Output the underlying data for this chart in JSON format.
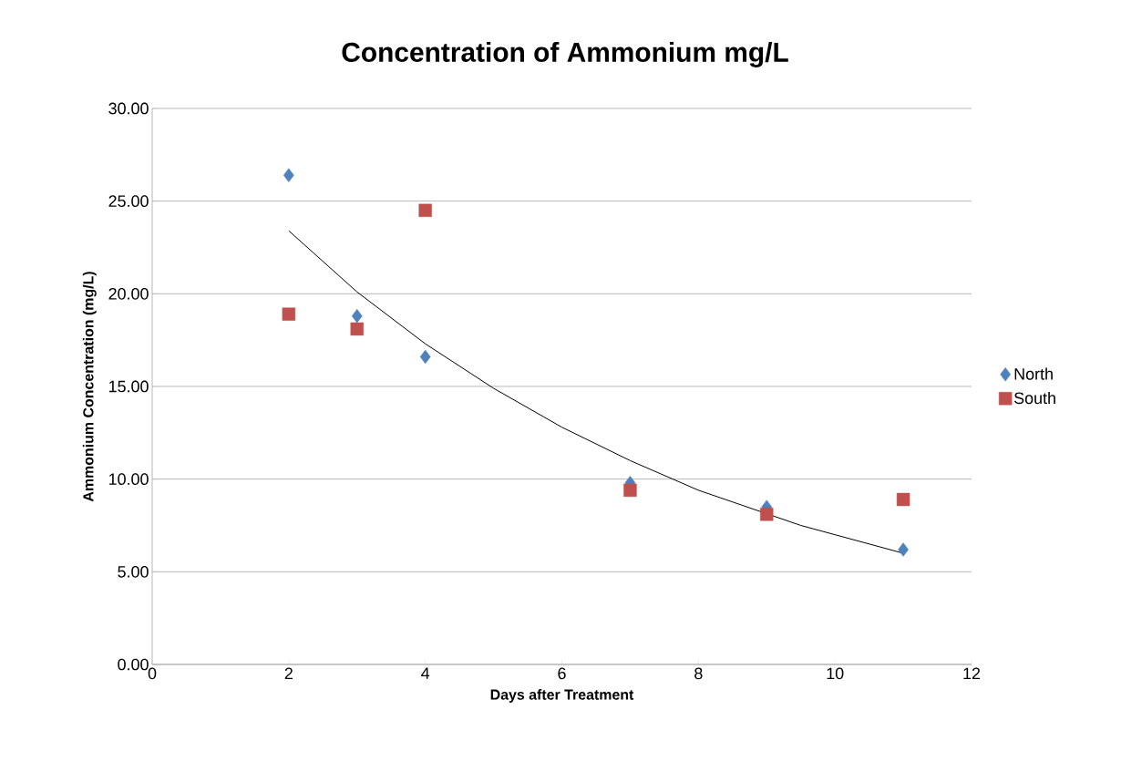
{
  "chart_data": {
    "type": "scatter",
    "title": "Concentration of Ammonium mg/L",
    "xlabel": "Days after Treatment",
    "ylabel": "Ammonium Concentration (mg/L)",
    "xlim": [
      0,
      12
    ],
    "xticks": [
      0,
      2,
      4,
      6,
      8,
      10,
      12
    ],
    "ylim": [
      0,
      30
    ],
    "yticks": [
      {
        "value": 0,
        "label": "0.00"
      },
      {
        "value": 5,
        "label": "5.00"
      },
      {
        "value": 10,
        "label": "10.00"
      },
      {
        "value": 15,
        "label": "15.00"
      },
      {
        "value": 20,
        "label": "20.00"
      },
      {
        "value": 25,
        "label": "25.00"
      },
      {
        "value": 30,
        "label": "30.00"
      }
    ],
    "grid": "y",
    "legend": "right",
    "series": [
      {
        "name": "North",
        "color": "#4f81bd",
        "marker": "diamond",
        "x": [
          2,
          3,
          4,
          7,
          9,
          11
        ],
        "values": [
          26.4,
          18.8,
          16.6,
          9.8,
          8.5,
          6.2
        ]
      },
      {
        "name": "South",
        "color": "#c0504d",
        "marker": "square",
        "x": [
          2,
          3,
          4,
          7,
          9,
          11
        ],
        "values": [
          18.9,
          18.1,
          24.5,
          9.4,
          8.1,
          8.9
        ]
      },
      {
        "type": "line",
        "color": "#000000",
        "marker": "none",
        "x": [
          2,
          3,
          4,
          5,
          6,
          7,
          8,
          9.5,
          10,
          11
        ],
        "values": [
          23.4,
          20.1,
          17.3,
          14.9,
          12.8,
          11.0,
          9.4,
          7.5,
          7.0,
          6.0
        ]
      }
    ]
  }
}
